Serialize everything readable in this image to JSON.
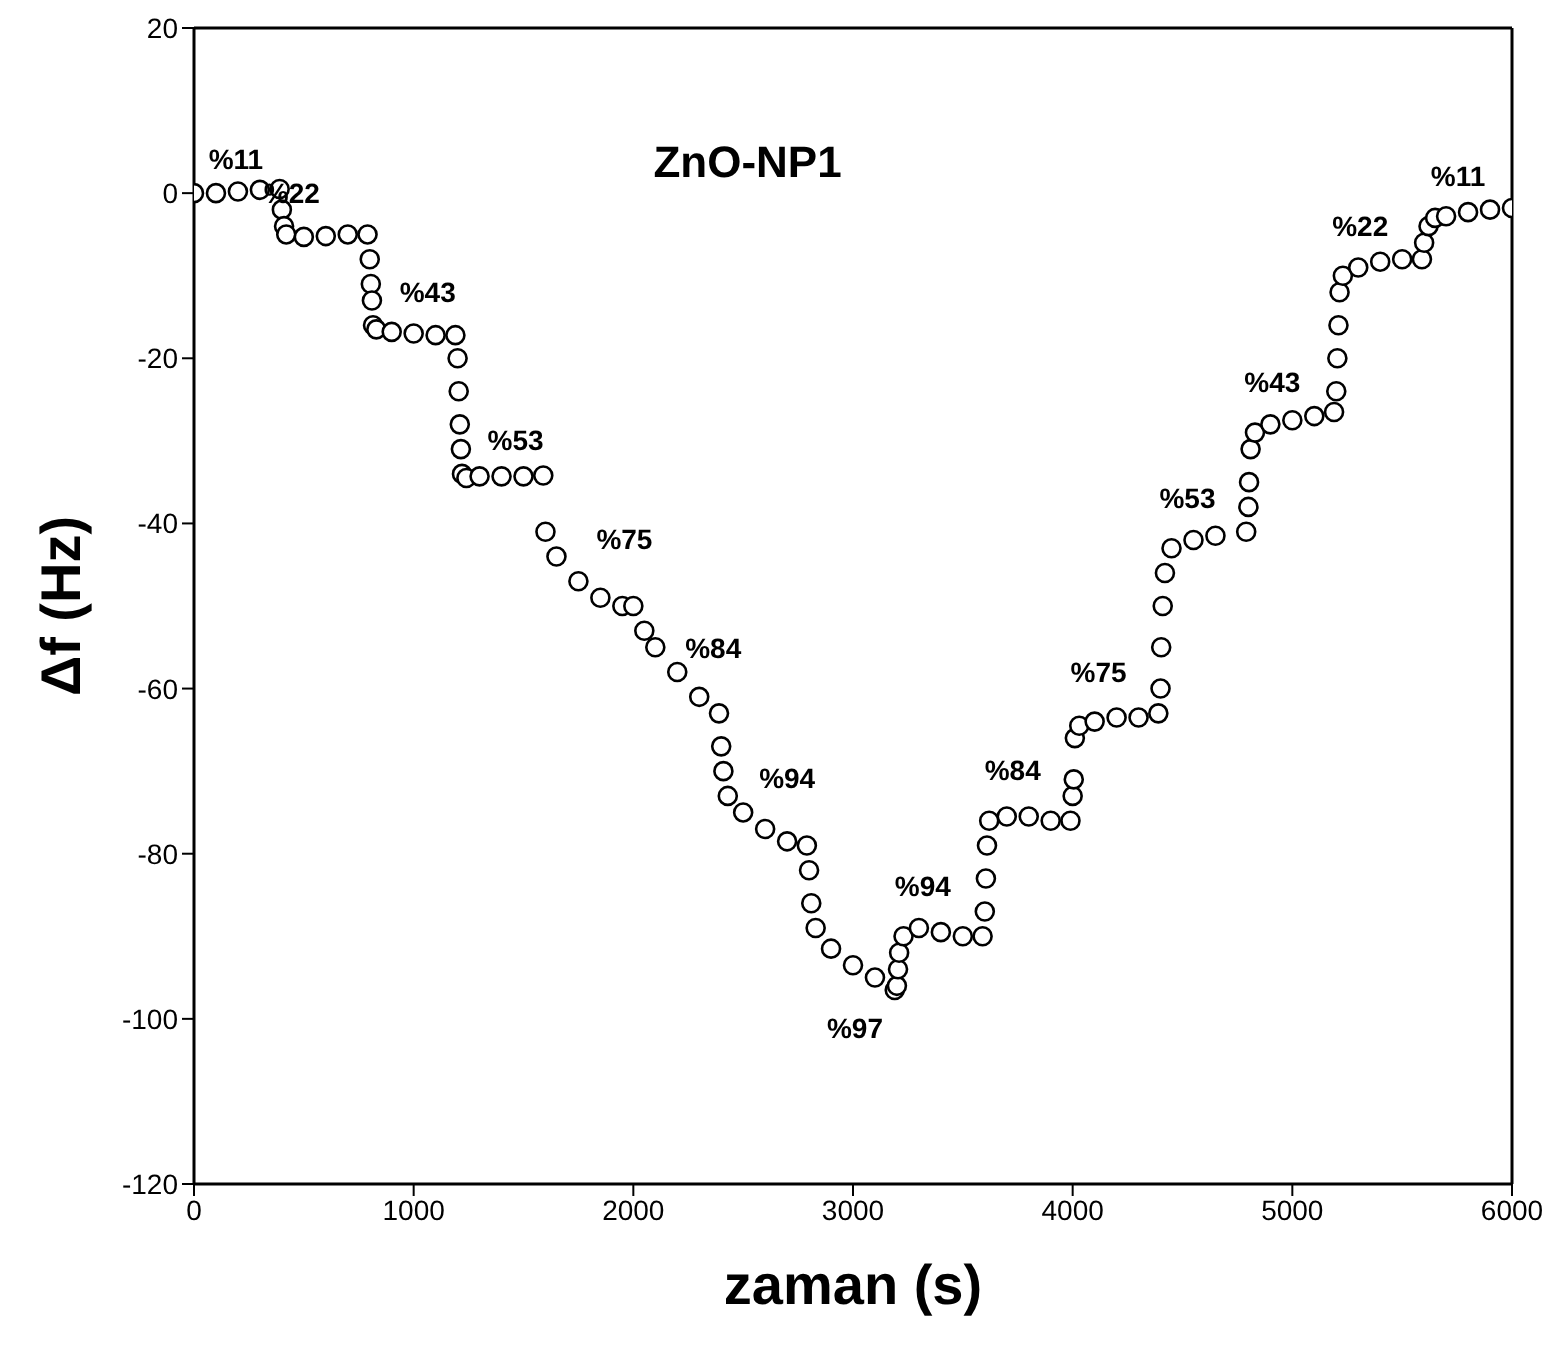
{
  "chart_data": {
    "type": "scatter",
    "title": "ZnO-NP1",
    "xlabel": "zaman (s)",
    "ylabel": "Δf (Hz)",
    "xlim": [
      0,
      6000
    ],
    "xticks": [
      0,
      1000,
      2000,
      3000,
      4000,
      5000,
      6000
    ],
    "ylim": [
      -120,
      20
    ],
    "yticks": [
      -120,
      -100,
      -80,
      -60,
      -40,
      -20,
      0,
      20
    ],
    "legend": false,
    "marker": "circle",
    "series": [
      {
        "color": "#000000",
        "x": [
          0,
          100,
          200,
          300,
          390,
          400,
          410,
          420,
          500,
          600,
          700,
          790,
          800,
          805,
          810,
          815,
          830,
          900,
          1000,
          1100,
          1190,
          1200,
          1205,
          1210,
          1215,
          1220,
          1240,
          1300,
          1400,
          1500,
          1590,
          1600,
          1650,
          1750,
          1850,
          1950,
          2000,
          2050,
          2100,
          2200,
          2300,
          2390,
          2400,
          2410,
          2430,
          2500,
          2600,
          2700,
          2790,
          2800,
          2810,
          2830,
          2900,
          3000,
          3100,
          3190,
          3200,
          3205,
          3210,
          3230,
          3300,
          3400,
          3500,
          3590,
          3600,
          3605,
          3610,
          3620,
          3700,
          3800,
          3900,
          3990,
          4000,
          4005,
          4010,
          4030,
          4100,
          4200,
          4300,
          4390,
          4400,
          4403,
          4410,
          4420,
          4450,
          4550,
          4650,
          4790,
          4800,
          4803,
          4810,
          4830,
          4900,
          5000,
          5100,
          5190,
          5200,
          5205,
          5210,
          5215,
          5230,
          5300,
          5400,
          5500,
          5590,
          5600,
          5620,
          5650,
          5700,
          5800,
          5900,
          6000
        ],
        "values": [
          0,
          0,
          0.2,
          0.4,
          0.5,
          -2,
          -4,
          -5,
          -5.3,
          -5.2,
          -5,
          -5,
          -8,
          -11,
          -13,
          -16,
          -16.5,
          -16.8,
          -17,
          -17.2,
          -17.2,
          -20,
          -24,
          -28,
          -31,
          -34,
          -34.5,
          -34.3,
          -34.3,
          -34.3,
          -34.2,
          -41,
          -44,
          -47,
          -49,
          -50,
          -50,
          -53,
          -55,
          -58,
          -61,
          -63,
          -67,
          -70,
          -73,
          -75,
          -77,
          -78.5,
          -79,
          -82,
          -86,
          -89,
          -91.5,
          -93.5,
          -95,
          -96.5,
          -96,
          -94,
          -92,
          -90,
          -89,
          -89.5,
          -90,
          -90,
          -87,
          -83,
          -79,
          -76,
          -75.5,
          -75.5,
          -76,
          -76,
          -73,
          -71,
          -66,
          -64.5,
          -64,
          -63.5,
          -63.5,
          -63,
          -60,
          -55,
          -50,
          -46,
          -43,
          -42,
          -41.5,
          -41,
          -38,
          -35,
          -31,
          -29,
          -28,
          -27.5,
          -27,
          -26.5,
          -24,
          -20,
          -16,
          -12,
          -10,
          -9,
          -8.3,
          -8,
          -8,
          -6,
          -4,
          -3,
          -2.8,
          -2.3,
          -2,
          -1.8
        ]
      }
    ],
    "annotations": [
      {
        "text": "%11",
        "x": 200,
        "y": 0.2
      },
      {
        "text": "%22",
        "x": 500,
        "y": -5.3
      },
      {
        "text": "%43",
        "x": 900,
        "y": -16.8
      },
      {
        "text": "%53",
        "x": 1400,
        "y": -34.3
      },
      {
        "text": "%75",
        "x": 1750,
        "y": -47
      },
      {
        "text": "%84",
        "x": 2200,
        "y": -58
      },
      {
        "text": "%94",
        "x": 2500,
        "y": -75
      },
      {
        "text": "%97",
        "x": 3100,
        "y": -95
      },
      {
        "text": "%94",
        "x": 3300,
        "y": -89
      },
      {
        "text": "%84",
        "x": 3700,
        "y": -75.5
      },
      {
        "text": "%75",
        "x": 4100,
        "y": -64
      },
      {
        "text": "%53",
        "x": 4550,
        "y": -42
      },
      {
        "text": "%43",
        "x": 4900,
        "y": -28
      },
      {
        "text": "%22",
        "x": 5400,
        "y": -8.3
      },
      {
        "text": "%11",
        "x": 5900,
        "y": -2
      }
    ]
  }
}
